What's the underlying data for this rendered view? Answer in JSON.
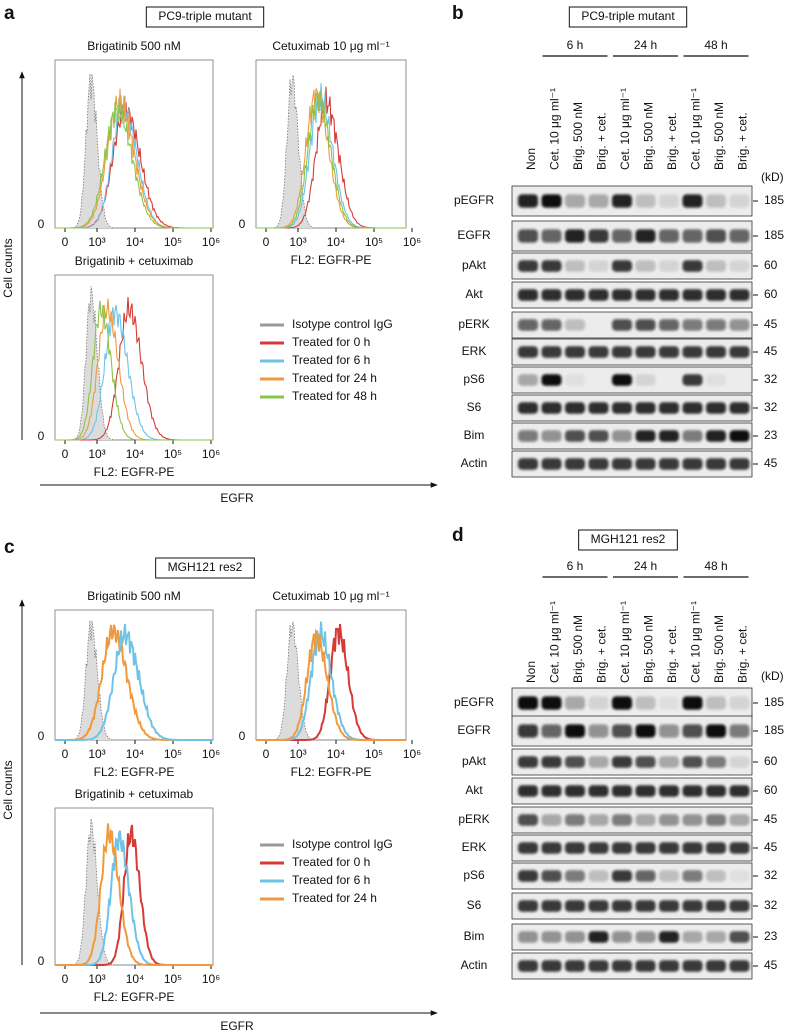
{
  "panels": [
    {
      "letter": "a",
      "title": "PC9-triple mutant",
      "plot_titles": [
        "Brigatinib 500 nM",
        "Cetuximab 10 μg ml⁻¹",
        "Brigatinib + cetuximab"
      ],
      "xticks": [
        "0",
        "10³",
        "10⁴",
        "10⁵",
        "10⁶"
      ],
      "ytick": "0",
      "plot_xlabel": "FL2: EGFR-PE",
      "ylabel": "Cell counts",
      "xlabel": "EGFR",
      "legend": [
        {
          "name": "Isotype control IgG",
          "color": "#9a9a9a"
        },
        {
          "name": "Treated for 0 h",
          "color": "#d63a35"
        },
        {
          "name": "Treated for 6 h",
          "color": "#6fc3e6"
        },
        {
          "name": "Treated for 24 h",
          "color": "#ef9a3c"
        },
        {
          "name": "Treated for 48 h",
          "color": "#8cc34a"
        }
      ]
    },
    {
      "letter": "b",
      "title": "PC9-triple mutant",
      "timepoints": [
        "6 h",
        "24 h",
        "48 h"
      ],
      "lanes": [
        "Non",
        "Cet. 10 μg ml⁻¹",
        "Brig. 500 nM",
        "Brig. + cet.",
        "Cet. 10 μg ml⁻¹",
        "Brig. 500 nM",
        "Brig. + cet.",
        "Cet. 10 μg ml⁻¹",
        "Brig. 500 nM",
        "Brig. + cet."
      ],
      "unit": "(kD)",
      "rows": [
        {
          "label": "pEGFR",
          "kd": 185
        },
        {
          "label": "EGFR",
          "kd": 185
        },
        {
          "label": "pAkt",
          "kd": 60
        },
        {
          "label": "Akt",
          "kd": 60
        },
        {
          "label": "pERK",
          "kd": 45
        },
        {
          "label": "ERK",
          "kd": 45
        },
        {
          "label": "pS6",
          "kd": 32
        },
        {
          "label": "S6",
          "kd": 32
        },
        {
          "label": "Bim",
          "kd": 23
        },
        {
          "label": "Actin",
          "kd": 45
        }
      ]
    },
    {
      "letter": "c",
      "title": "MGH121 res2",
      "plot_titles": [
        "Brigatinib 500 nM",
        "Cetuximab 10 μg ml⁻¹",
        "Brigatinib + cetuximab"
      ],
      "xticks": [
        "0",
        "10³",
        "10⁴",
        "10⁵",
        "10⁶"
      ],
      "ytick": "0",
      "plot_xlabel": "FL2: EGFR-PE",
      "ylabel": "Cell counts",
      "xlabel": "EGFR",
      "legend": [
        {
          "name": "Isotype control IgG",
          "color": "#9a9a9a"
        },
        {
          "name": "Treated for 0 h",
          "color": "#d63a35"
        },
        {
          "name": "Treated for 6 h",
          "color": "#6fc3e6"
        },
        {
          "name": "Treated for 24 h",
          "color": "#ef9a3c"
        }
      ]
    },
    {
      "letter": "d",
      "title": "MGH121 res2",
      "timepoints": [
        "6 h",
        "24 h",
        "48 h"
      ],
      "lanes": [
        "Non",
        "Cet. 10 μg ml⁻¹",
        "Brig. 500 nM",
        "Brig. + cet.",
        "Cet. 10 μg ml⁻¹",
        "Brig. 500 nM",
        "Brig. + cet.",
        "Cet. 10 μg ml⁻¹",
        "Brig. 500 nM",
        "Brig. + cet."
      ],
      "unit": "(kD)",
      "rows": [
        {
          "label": "pEGFR",
          "kd": 185
        },
        {
          "label": "EGFR",
          "kd": 185
        },
        {
          "label": "pAkt",
          "kd": 60
        },
        {
          "label": "Akt",
          "kd": 60
        },
        {
          "label": "pERK",
          "kd": 45
        },
        {
          "label": "ERK",
          "kd": 45
        },
        {
          "label": "pS6",
          "kd": 32
        },
        {
          "label": "S6",
          "kd": 32
        },
        {
          "label": "Bim",
          "kd": 23
        },
        {
          "label": "Actin",
          "kd": 45
        }
      ]
    }
  ]
}
